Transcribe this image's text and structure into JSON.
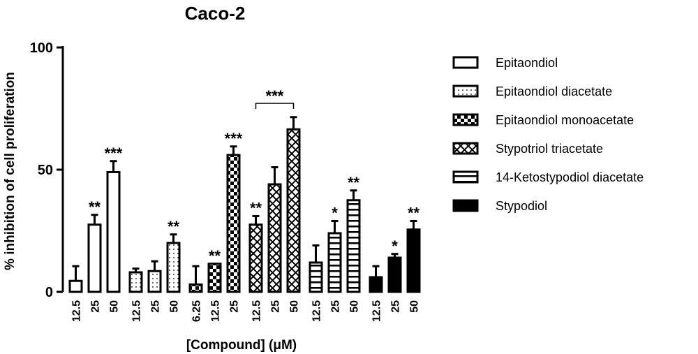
{
  "chart_data": {
    "type": "bar",
    "title": "Caco-2",
    "ylabel": "% inhibition of cell proliferation",
    "xlabel": "[Compound] (μM)",
    "ylim": [
      0,
      100
    ],
    "yticks": [
      0,
      50,
      100
    ],
    "grid": false,
    "legend_position": "right",
    "series": [
      {
        "name": "Epitaondiol",
        "pattern": "open",
        "categories": [
          "12.5",
          "25",
          "50"
        ],
        "values": [
          4.5,
          27.5,
          49
        ],
        "errors": [
          6,
          4,
          4.5
        ],
        "significance": [
          "",
          "**",
          "***"
        ]
      },
      {
        "name": "Epitaondiol diacetate",
        "pattern": "dots",
        "categories": [
          "12.5",
          "25",
          "50"
        ],
        "values": [
          8,
          8.5,
          20
        ],
        "errors": [
          1.5,
          4,
          3.5
        ],
        "significance": [
          "",
          "",
          "**"
        ]
      },
      {
        "name": "Epitaondiol monoacetate",
        "pattern": "checker",
        "categories": [
          "6.25",
          "12.5",
          "25"
        ],
        "values": [
          3,
          11.5,
          56
        ],
        "errors": [
          7.5,
          0,
          3.5
        ],
        "significance": [
          "",
          "**",
          "***"
        ]
      },
      {
        "name": "Stypotriol triacetate",
        "pattern": "crosshatch",
        "categories": [
          "12.5",
          "25",
          "50"
        ],
        "values": [
          27.5,
          44,
          66.5
        ],
        "errors": [
          3.5,
          7,
          5
        ],
        "significance": [
          "**",
          "",
          ""
        ]
      },
      {
        "name": "14-Ketostypodiol diacetate",
        "pattern": "hstripes",
        "categories": [
          "12.5",
          "25",
          "50"
        ],
        "values": [
          12,
          24,
          37.5
        ],
        "errors": [
          7,
          5,
          4
        ],
        "significance": [
          "",
          "*",
          "**"
        ]
      },
      {
        "name": "Stypodiol",
        "pattern": "solid",
        "categories": [
          "12.5",
          "25",
          "50"
        ],
        "values": [
          6,
          14,
          25.5
        ],
        "errors": [
          4.5,
          1.5,
          3.5
        ],
        "significance": [
          "",
          "*",
          "**"
        ]
      }
    ],
    "bracket_annotation": {
      "label": "***",
      "from_group": 3,
      "from_bar": 0,
      "to_group": 3,
      "to_bar": 2
    }
  }
}
